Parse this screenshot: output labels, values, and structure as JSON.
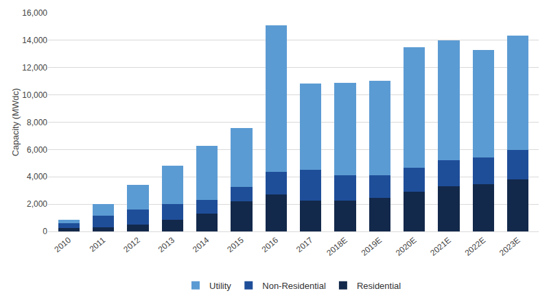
{
  "chart_data": {
    "type": "bar",
    "stacked": true,
    "grid": true,
    "legend": "bottom",
    "y_label": "Capacity (MWdc)",
    "categories": [
      "2010",
      "2011",
      "2012",
      "2013",
      "2014",
      "2015",
      "2016",
      "2017",
      "2018E",
      "2019E",
      "2020E",
      "2021E",
      "2022E",
      "2023E"
    ],
    "series": [
      {
        "name": "Residential",
        "color": "#13294b",
        "values": [
          250,
          300,
          500,
          850,
          1300,
          2200,
          2700,
          2250,
          2250,
          2450,
          2900,
          3300,
          3450,
          3800
        ]
      },
      {
        "name": "Non-Residential",
        "color": "#1f4e99",
        "values": [
          350,
          850,
          1100,
          1150,
          1000,
          1050,
          1650,
          2250,
          1850,
          1650,
          1750,
          1900,
          1950,
          2150
        ]
      },
      {
        "name": "Utility",
        "color": "#5b9bd3",
        "values": [
          250,
          850,
          1800,
          2800,
          3950,
          4300,
          10750,
          6350,
          6800,
          6950,
          8850,
          8800,
          7900,
          8400
        ]
      }
    ],
    "ylim": [
      0,
      16000
    ],
    "yticks": [
      0,
      {
        "value": 2000,
        "label": "2,000"
      },
      {
        "value": 4000,
        "label": "4,000"
      },
      {
        "value": 6000,
        "label": "6,000"
      },
      {
        "value": 8000,
        "label": "8,000"
      },
      {
        "value": 10000,
        "label": "10,000"
      },
      {
        "value": 12000,
        "label": "12,000"
      },
      {
        "value": 14000,
        "label": "14,000"
      },
      {
        "value": 16000,
        "label": "16,000"
      }
    ]
  }
}
